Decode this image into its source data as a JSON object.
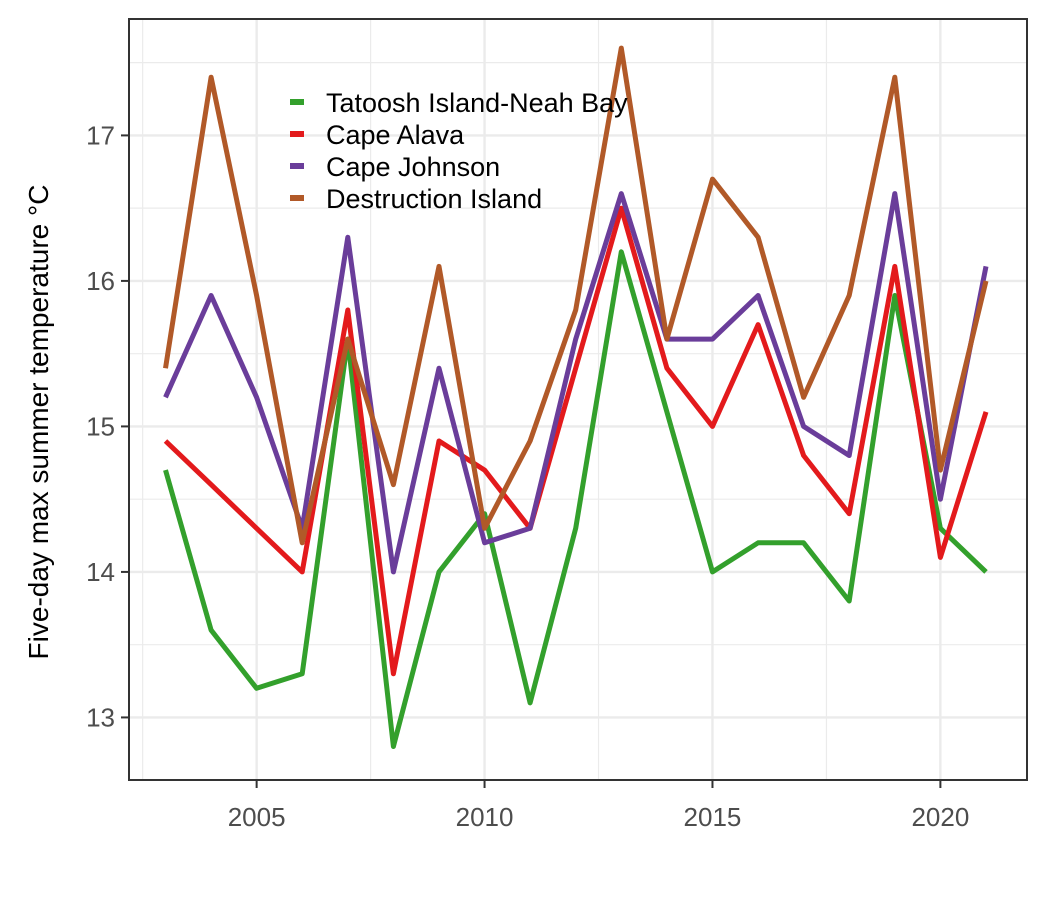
{
  "chart_data": {
    "type": "line",
    "xlabel": "",
    "ylabel": "Five-day max summer temperature °C",
    "xlim": [
      2002.2,
      2021.9
    ],
    "ylim": [
      12.57,
      17.8
    ],
    "grid": true,
    "legend_position": "top-left (inside)",
    "x": [
      2003,
      2004,
      2005,
      2006,
      2007,
      2008,
      2009,
      2010,
      2011,
      2012,
      2013,
      2014,
      2015,
      2016,
      2017,
      2018,
      2019,
      2020,
      2021
    ],
    "x_ticks": [
      2005,
      2010,
      2015,
      2020
    ],
    "y_ticks": [
      13,
      14,
      15,
      16,
      17
    ],
    "x_tick_labels": [
      "2005",
      "2010",
      "2015",
      "2020"
    ],
    "y_tick_labels": [
      "13",
      "14",
      "15",
      "16",
      "17"
    ],
    "series": [
      {
        "name": "Tatoosh Island-Neah Bay",
        "color": "#33a02c",
        "values": [
          14.7,
          13.6,
          13.2,
          13.3,
          15.6,
          12.8,
          14.0,
          14.4,
          13.1,
          14.3,
          16.2,
          15.1,
          14.0,
          14.2,
          14.2,
          13.8,
          15.9,
          14.3,
          14.0
        ]
      },
      {
        "name": "Cape Alava",
        "color": "#e31a1c",
        "values": [
          14.9,
          14.6,
          14.3,
          14.0,
          15.8,
          13.3,
          14.9,
          14.7,
          14.3,
          15.4,
          16.5,
          15.4,
          15.0,
          15.7,
          14.8,
          14.4,
          16.1,
          14.1,
          15.1
        ]
      },
      {
        "name": "Cape Johnson",
        "color": "#6a3d9a",
        "values": [
          15.2,
          15.9,
          15.2,
          14.3,
          16.3,
          14.0,
          15.4,
          14.2,
          14.3,
          15.6,
          16.6,
          15.6,
          15.6,
          15.9,
          15.0,
          14.8,
          16.6,
          14.5,
          16.1
        ]
      },
      {
        "name": "Destruction Island",
        "color": "#b15928",
        "values": [
          15.4,
          17.4,
          15.9,
          14.2,
          15.6,
          14.6,
          16.1,
          14.3,
          14.9,
          15.8,
          17.6,
          15.6,
          16.7,
          16.3,
          15.2,
          15.9,
          17.4,
          14.7,
          16.0
        ]
      }
    ]
  }
}
